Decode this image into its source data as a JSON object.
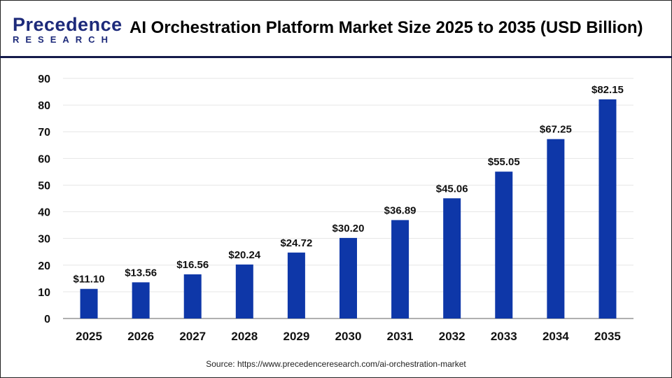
{
  "header": {
    "logo_line1": "Precedence",
    "logo_line2": "RESEARCH",
    "title": "AI Orchestration Platform Market Size 2025 to 2035 (USD Billion)"
  },
  "chart_data": {
    "type": "bar",
    "title": "AI Orchestration Platform Market Size 2025 to 2035 (USD Billion)",
    "categories": [
      "2025",
      "2026",
      "2027",
      "2028",
      "2029",
      "2030",
      "2031",
      "2032",
      "2033",
      "2034",
      "2035"
    ],
    "values": [
      11.1,
      13.56,
      16.56,
      20.24,
      24.72,
      30.2,
      36.89,
      45.06,
      55.05,
      67.25,
      82.15
    ],
    "data_labels": [
      "$11.10",
      "$13.56",
      "$16.56",
      "$20.24",
      "$24.72",
      "$30.20",
      "$36.89",
      "$45.06",
      "$55.05",
      "$67.25",
      "$82.15"
    ],
    "yticks": [
      0,
      10,
      20,
      30,
      40,
      50,
      60,
      70,
      80,
      90
    ],
    "ylim": [
      0,
      90
    ],
    "grid": true,
    "bar_color": "#0e37a8"
  },
  "source": "Source: https://www.precedenceresearch.com/ai-orchestration-market"
}
